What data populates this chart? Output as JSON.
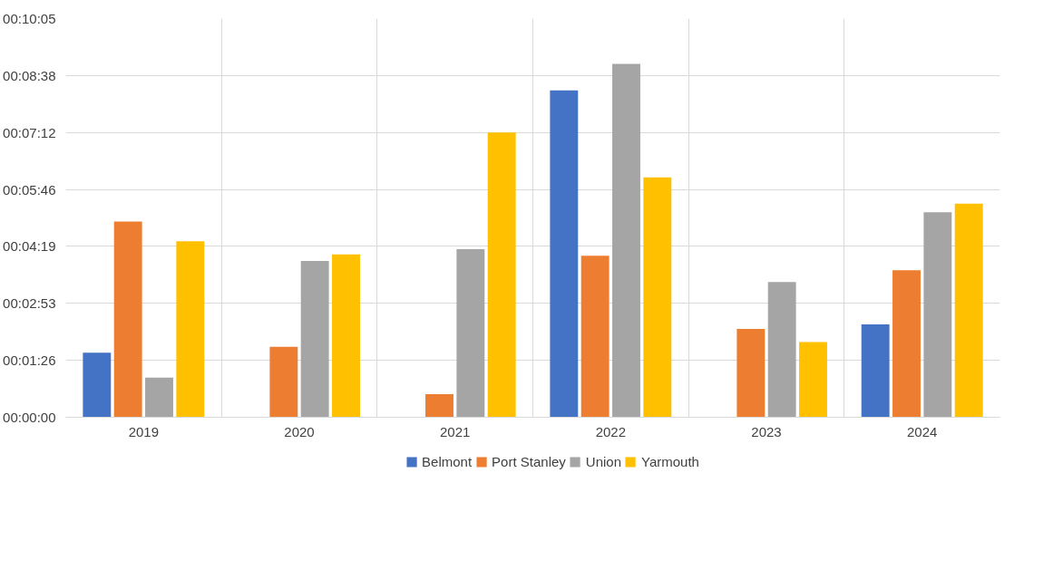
{
  "chart_data": {
    "type": "bar",
    "categories": [
      "2019",
      "2020",
      "2021",
      "2022",
      "2023",
      "2024"
    ],
    "series": [
      {
        "name": "Belmont",
        "color": "#4472c4",
        "values": [
          98,
          null,
          null,
          496,
          null,
          141
        ]
      },
      {
        "name": "Port Stanley",
        "color": "#ed7d31",
        "values": [
          297,
          107,
          35,
          245,
          134,
          223
        ]
      },
      {
        "name": "Union",
        "color": "#a5a5a5",
        "values": [
          60,
          237,
          255,
          536,
          205,
          311
        ]
      },
      {
        "name": "Yarmouth",
        "color": "#ffc000",
        "values": [
          267,
          247,
          432,
          364,
          114,
          324
        ]
      }
    ],
    "ylim": [
      0,
      604.8
    ],
    "yticks": [
      {
        "value": 0,
        "label": "00:00:00"
      },
      {
        "value": 86.4,
        "label": "00:01:26"
      },
      {
        "value": 172.8,
        "label": "00:02:53"
      },
      {
        "value": 259.2,
        "label": "00:04:19"
      },
      {
        "value": 345.6,
        "label": "00:05:46"
      },
      {
        "value": 432,
        "label": "00:07:12"
      },
      {
        "value": 518.4,
        "label": "00:08:38"
      },
      {
        "value": 604.8,
        "label": "00:10:05"
      }
    ],
    "grid": true,
    "legend": "bottom"
  }
}
